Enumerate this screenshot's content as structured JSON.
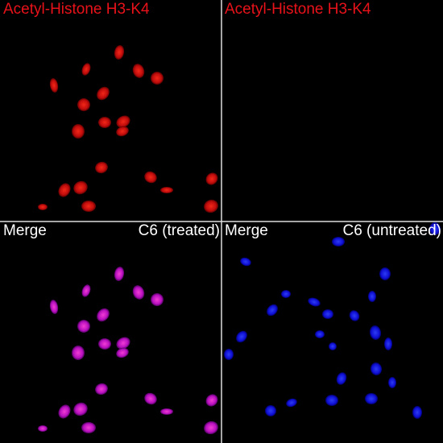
{
  "panels": [
    {
      "label": "Acetyl-Histone H3-K4"
    },
    {
      "label": "Acetyl-Histone H3-K4"
    },
    {
      "label": "Merge",
      "sample": "C6 (treated)"
    },
    {
      "label": "Merge",
      "sample": "C6 (untreated)"
    }
  ]
}
